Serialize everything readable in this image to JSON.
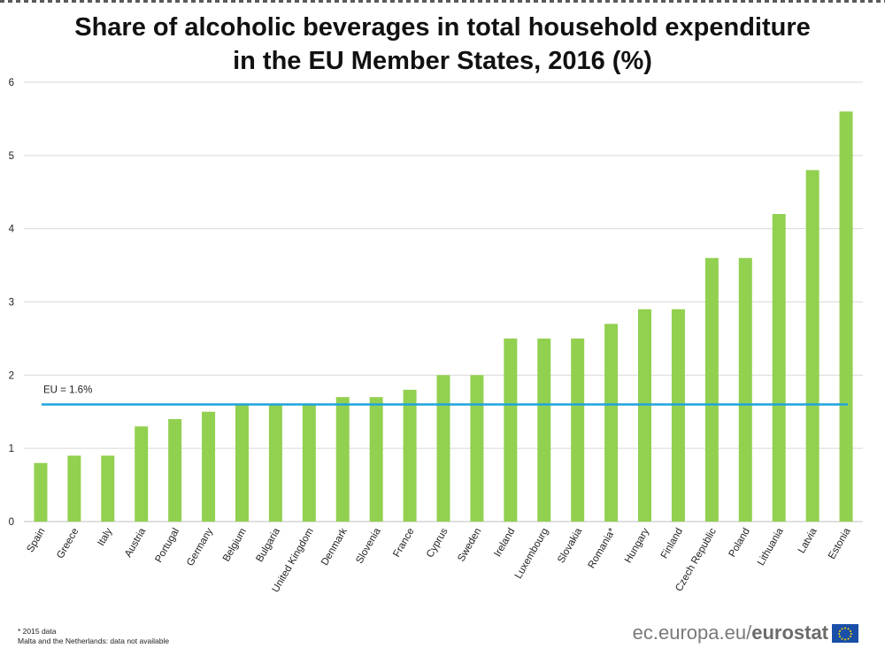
{
  "title_line1": "Share of alcoholic beverages in total household expenditure",
  "title_line2": "in the EU Member States, 2016 (%)",
  "footnotes": {
    "line1": "* 2015 data",
    "line2": "Malta  and the Netherlands:  data  not available"
  },
  "brand": {
    "prefix": "ec.europa.eu/",
    "name": "eurostat"
  },
  "colors": {
    "bar": "#92d050",
    "eu_line": "#1ea3dc",
    "grid": "#d9d9d9"
  },
  "chart_data": {
    "type": "bar",
    "title": "Share of alcoholic beverages in total household expenditure in the EU Member States, 2016 (%)",
    "categories": [
      "Spain",
      "Greece",
      "Italy",
      "Austria",
      "Portugal",
      "Germany",
      "Belgium",
      "Bulgaria",
      "United Kingdom",
      "Denmark",
      "Slovenia",
      "France",
      "Cyprus",
      "Sweden",
      "Ireland",
      "Luxembourg",
      "Slovakia",
      "Romania*",
      "Hungary",
      "Finland",
      "Czech Republic",
      "Poland",
      "Lithuania",
      "Latvia",
      "Estonia"
    ],
    "values": [
      0.8,
      0.9,
      0.9,
      1.3,
      1.4,
      1.5,
      1.6,
      1.6,
      1.6,
      1.7,
      1.7,
      1.8,
      2.0,
      2.0,
      2.5,
      2.5,
      2.5,
      2.7,
      2.9,
      2.9,
      3.6,
      3.6,
      4.2,
      4.8,
      5.6
    ],
    "ylim": [
      0,
      6
    ],
    "yticks": [
      0,
      1,
      2,
      3,
      4,
      5,
      6
    ],
    "grid": true,
    "reference_line": {
      "value": 1.6,
      "label": "EU = 1.6%"
    }
  }
}
